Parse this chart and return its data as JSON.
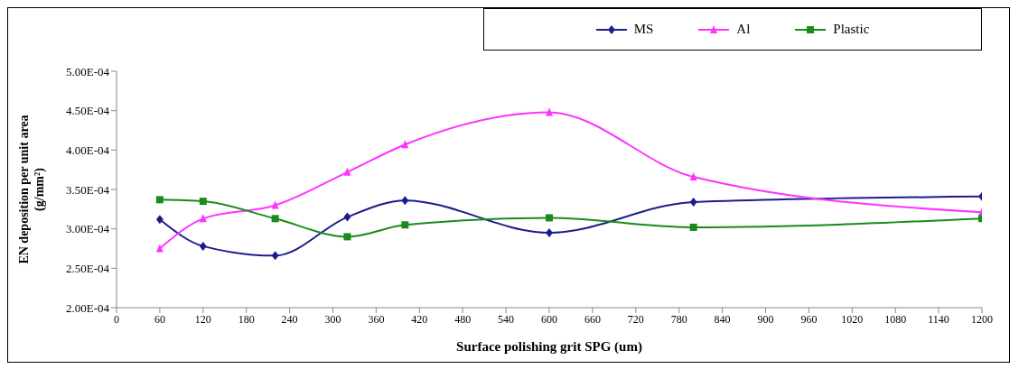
{
  "chart_data": {
    "type": "line",
    "xlabel": "Surface polishing grit SPG (um)",
    "ylabel": "EN deposition per unit area (g/mm²)",
    "x": [
      60,
      120,
      220,
      320,
      400,
      600,
      800,
      1200
    ],
    "series": [
      {
        "name": "MS",
        "color": "#1c1c8c",
        "marker": "diamond",
        "values": [
          0.000312,
          0.000278,
          0.000266,
          0.000315,
          0.000336,
          0.000295,
          0.000334,
          0.000341
        ]
      },
      {
        "name": "Al",
        "color": "#ff33ff",
        "marker": "triangle",
        "values": [
          0.000275,
          0.000313,
          0.00033,
          0.000372,
          0.000407,
          0.000448,
          0.000366,
          0.000321
        ]
      },
      {
        "name": "Plastic",
        "color": "#1a8a1a",
        "marker": "square",
        "values": [
          0.000337,
          0.000335,
          0.000313,
          0.00029,
          0.000305,
          0.000314,
          0.000302,
          0.000313
        ]
      }
    ],
    "xlim": [
      0,
      1200
    ],
    "xticks": [
      0,
      60,
      120,
      180,
      240,
      300,
      360,
      420,
      480,
      540,
      600,
      660,
      720,
      780,
      840,
      900,
      960,
      1020,
      1080,
      1140,
      1200
    ],
    "ylim": [
      0.0002,
      0.0005
    ],
    "yticks": [
      {
        "value": 0.0002,
        "label": "2.00E-04"
      },
      {
        "value": 0.00025,
        "label": "2.50E-04"
      },
      {
        "value": 0.0003,
        "label": "3.00E-04"
      },
      {
        "value": 0.00035,
        "label": "3.50E-04"
      },
      {
        "value": 0.0004,
        "label": "4.00E-04"
      },
      {
        "value": 0.00045,
        "label": "4.50E-04"
      },
      {
        "value": 0.0005,
        "label": "5.00E-04"
      }
    ],
    "grid": false,
    "legend": "top right",
    "line_style": "solid"
  }
}
